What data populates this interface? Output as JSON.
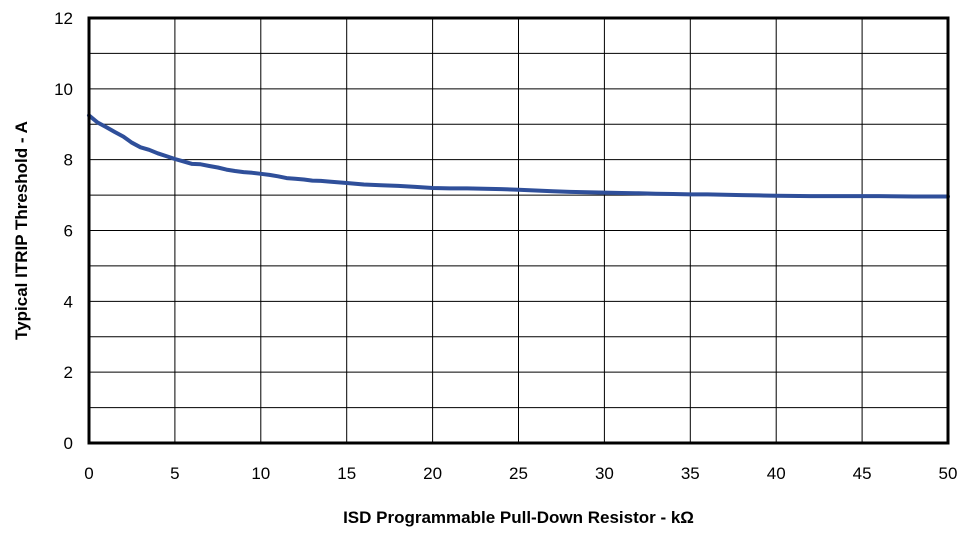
{
  "chart_data": {
    "type": "line",
    "title": "",
    "xlabel": "ISD Programmable Pull-Down Resistor - kΩ",
    "ylabel": "Typical ITRIP Threshold - A",
    "xlim": [
      0,
      50
    ],
    "ylim": [
      0,
      12
    ],
    "x_ticks": [
      "0",
      "5",
      "10",
      "15",
      "20",
      "25",
      "30",
      "35",
      "40",
      "45",
      "50"
    ],
    "y_ticks": [
      "0",
      "2",
      "4",
      "6",
      "8",
      "10",
      "12"
    ],
    "x_tick_values": [
      0,
      5,
      10,
      15,
      20,
      25,
      30,
      35,
      40,
      45,
      50
    ],
    "y_tick_values": [
      0,
      2,
      4,
      6,
      8,
      10,
      12
    ],
    "x_minor_grid": [],
    "y_minor_grid": [
      1,
      3,
      5,
      7,
      9,
      11
    ],
    "grid": true,
    "legend": "none",
    "colors": {
      "line": "#2f4f9a",
      "grid": "#000000",
      "frame": "#000000"
    },
    "series": [
      {
        "x": [
          0,
          0.5,
          1,
          1.5,
          2,
          2.5,
          3,
          3.5,
          4,
          4.5,
          5,
          5.5,
          6,
          6.5,
          7,
          7.5,
          8,
          8.5,
          9,
          9.5,
          10,
          10.5,
          11,
          11.5,
          12,
          12.5,
          13,
          13.5,
          14,
          15,
          16,
          17,
          18,
          19,
          20,
          21,
          22,
          23,
          24,
          25,
          26,
          27,
          28,
          29,
          30,
          31,
          32,
          33,
          34,
          35,
          36,
          37,
          38,
          39,
          40,
          42,
          44,
          46,
          48,
          50
        ],
        "y": [
          9.25,
          9.05,
          8.92,
          8.78,
          8.65,
          8.48,
          8.35,
          8.28,
          8.18,
          8.1,
          8.02,
          7.95,
          7.88,
          7.87,
          7.82,
          7.78,
          7.72,
          7.68,
          7.65,
          7.63,
          7.6,
          7.57,
          7.53,
          7.48,
          7.46,
          7.44,
          7.41,
          7.4,
          7.38,
          7.34,
          7.3,
          7.28,
          7.26,
          7.23,
          7.2,
          7.19,
          7.19,
          7.18,
          7.17,
          7.15,
          7.13,
          7.11,
          7.09,
          7.08,
          7.07,
          7.06,
          7.05,
          7.04,
          7.03,
          7.02,
          7.02,
          7.01,
          7.0,
          6.99,
          6.98,
          6.97,
          6.97,
          6.97,
          6.96,
          6.96
        ]
      }
    ]
  }
}
